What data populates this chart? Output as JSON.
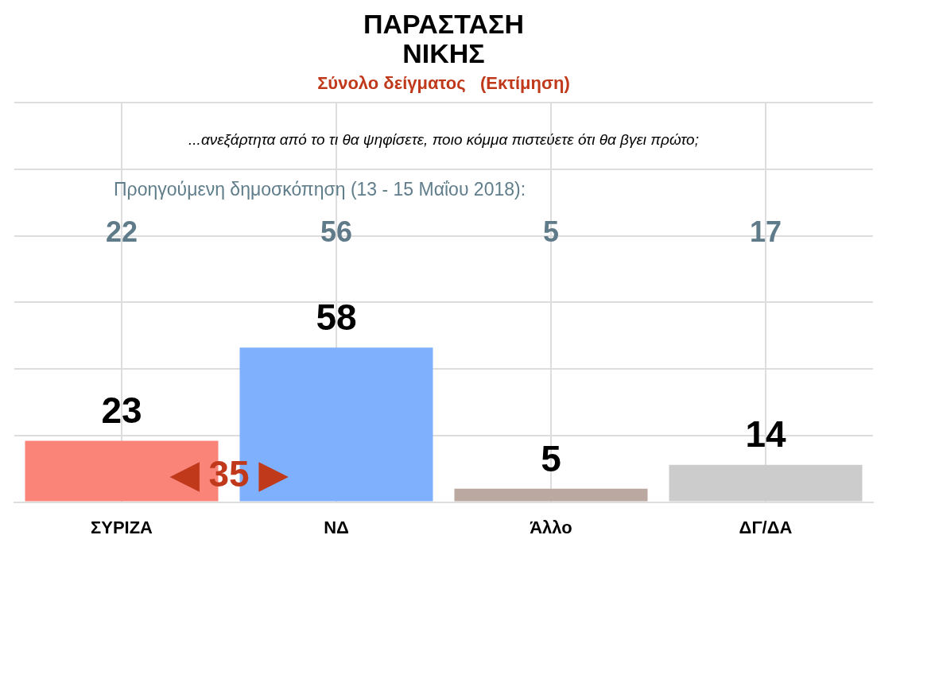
{
  "chart_data": {
    "type": "bar",
    "title": [
      "ΠΑΡΑΣΤΑΣΗ",
      "ΝΙΚΗΣ"
    ],
    "subtitle": "Σύνολο δείγματος   (Εκτίμηση)",
    "categories": [
      "ΣΥΡΙΖΑ",
      "ΝΔ",
      "Άλλο",
      "ΔΓ/ΔΑ"
    ],
    "values": [
      23,
      58,
      5,
      14
    ],
    "colors": [
      "#f98477",
      "#7fb0fd",
      "#bba9a1",
      "#cccccc"
    ],
    "data_labels": true,
    "ylim": [
      0,
      150
    ],
    "yticks": [
      {
        "value": 0,
        "label": null
      },
      {
        "value": 25,
        "label": null
      },
      {
        "value": 50,
        "label": null
      },
      {
        "value": 75,
        "label": null
      },
      {
        "value": 100,
        "label": null
      },
      {
        "value": 125,
        "label": null
      },
      {
        "value": 150,
        "label": null
      }
    ],
    "tick_labels": "x",
    "grid": true,
    "legend": false,
    "annotations": [
      "...ανεξάρτητα από το τι θα ψηφίσετε, ποιο κόμμα πιστεύετε ότι θα βγει πρώτο;",
      "Προηγούμενη δημοσκόπηση (13 - 15 Μαΐου 2018):",
      "22",
      "56",
      "5",
      "17",
      "◀ 35 ▶"
    ]
  }
}
